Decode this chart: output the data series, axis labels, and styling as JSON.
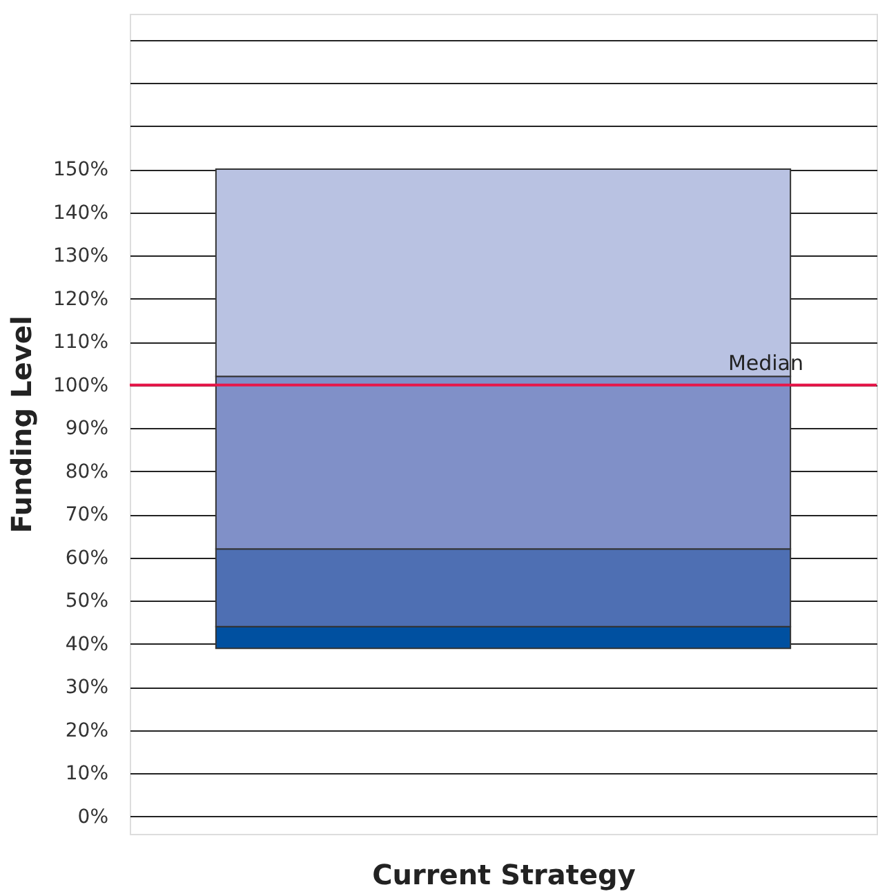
{
  "chart_data": {
    "type": "bar",
    "xlabel": "Current Strategy",
    "ylabel": "Funding Level",
    "categories": [
      null
    ],
    "series": [
      {
        "color": "#0050a0",
        "base": [
          39
        ],
        "values": [
          5
        ]
      },
      {
        "color": "#4e6fb3",
        "base": [
          44
        ],
        "values": [
          18
        ]
      },
      {
        "color": "#8090c8",
        "base": [
          62
        ],
        "values": [
          40
        ]
      },
      {
        "color": "#b9c2e2",
        "base": [
          102
        ],
        "values": [
          48
        ]
      }
    ],
    "ylim": [
      -4,
      186
    ],
    "yticks": [
      {
        "value": 0,
        "label": "0%"
      },
      {
        "value": 10,
        "label": "10%"
      },
      {
        "value": 20,
        "label": "20%"
      },
      {
        "value": 30,
        "label": "30%"
      },
      {
        "value": 40,
        "label": "40%"
      },
      {
        "value": 50,
        "label": "50%"
      },
      {
        "value": 60,
        "label": "60%"
      },
      {
        "value": 70,
        "label": "70%"
      },
      {
        "value": 80,
        "label": "80%"
      },
      {
        "value": 90,
        "label": "90%"
      },
      {
        "value": 100,
        "label": "100%"
      },
      {
        "value": 110,
        "label": "110%"
      },
      {
        "value": 120,
        "label": "120%"
      },
      {
        "value": 130,
        "label": "130%"
      },
      {
        "value": 140,
        "label": "140%"
      },
      {
        "value": 150,
        "label": "150%"
      },
      {
        "value": 160,
        "label": null
      },
      {
        "value": 170,
        "label": null
      },
      {
        "value": 180,
        "label": null
      }
    ],
    "ref_lines": [
      {
        "axis": "y",
        "value": 100,
        "label": "Median",
        "color": "#e8174a"
      }
    ],
    "grid": "y",
    "legend": false,
    "tick_labels": "y"
  }
}
